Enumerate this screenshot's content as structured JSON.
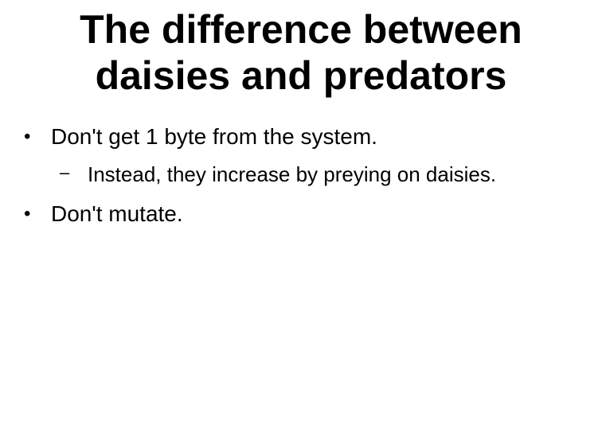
{
  "slide": {
    "title_line1": "The difference between",
    "title_line2": "daisies and predators",
    "bullets": [
      {
        "marker": "•",
        "text": "Don't get 1 byte from the system."
      },
      {
        "marker": "–",
        "text": "Instead, they increase by preying on daisies."
      },
      {
        "marker": "•",
        "text": "Don't mutate."
      }
    ]
  }
}
